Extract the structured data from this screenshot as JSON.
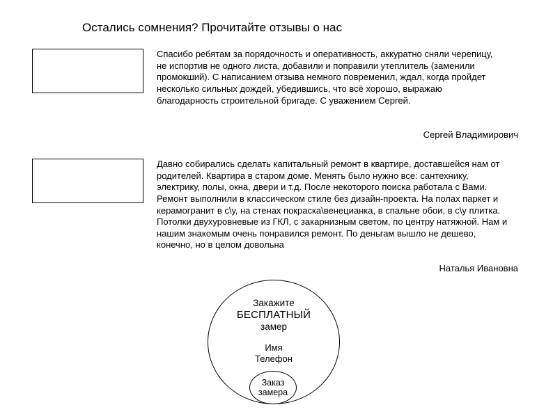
{
  "heading": "Остались сомнения? Прочитайте отзывы о нас",
  "reviews": [
    {
      "text": "Спасибо ребятам за порядочность и оперативность, аккуратно сняли черепицу, не испортив не одного листа, добавили и поправили утеплитель (заменили промокший). С написанием отзыва немного повременил, ждал, когда пройдет несколько сильных дождей, убедившись, что всё хорошо, выражаю благодарность строительной бригаде. С уважением Сергей.",
      "author": "Сергей Владимирович"
    },
    {
      "text": "Давно собирались сделать капитальный ремонт в квартире, доставшейся нам от родителей. Квартира в старом доме. Менять было нужно все: сантехнику, электрику, полы, окна, двери и т.д. После некоторого поиска работала с Вами. Ремонт выполнили в классическом стиле без дизайн-проекта. На полах паркет и керамогранит в с\\у, на стенах покраска\\венецианка, в спальне обои, в с\\у плитка. Потолки двухуровневые из ГКЛ, с закарнизным светом, по центру натяжной. Нам и нашим знакомым очень понравился ремонт. По деньгам вышло не дешево, конечно, но в целом довольна",
      "author": "Наталья Ивановна"
    }
  ],
  "cta": {
    "line1": "Закажите",
    "line2": "БЕСПЛАТНЫЙ",
    "line3": "замер",
    "name_label": "Имя",
    "phone_label": "Телефон",
    "button_line1": "Заказ",
    "button_line2": "замера"
  },
  "style": {
    "background_color": "#ffffff",
    "text_color": "#000000",
    "border_color": "#000000",
    "heading_fontsize_pt": 13,
    "body_fontsize_pt": 10,
    "font_family": "Arial"
  }
}
